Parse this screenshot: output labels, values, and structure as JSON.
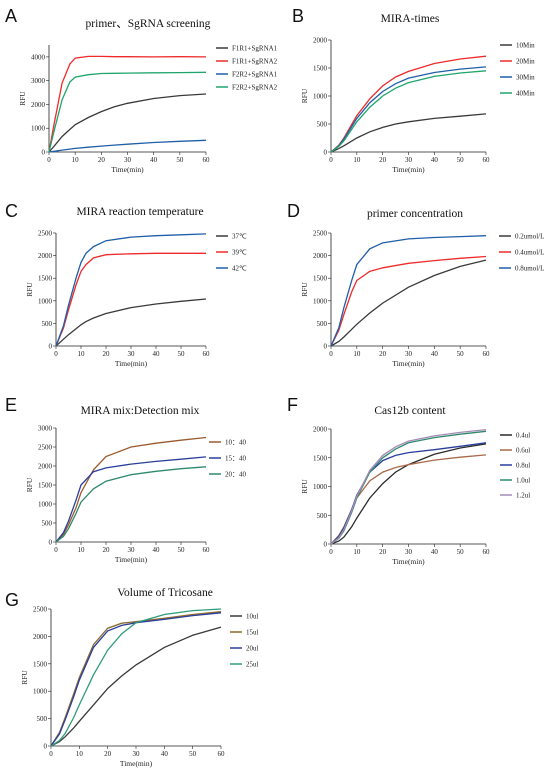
{
  "chart_data": [
    {
      "panel": "A",
      "type": "line",
      "title": "primer、SgRNA screening",
      "xlabel": "Time(min)",
      "ylabel": "RFU",
      "xlim": [
        0,
        60
      ],
      "ylim": [
        0,
        4500
      ],
      "xticks": [
        "0",
        "10",
        "20",
        "30",
        "40",
        "50",
        "60"
      ],
      "yticks": [
        "0",
        "1000",
        "2000",
        "3000",
        "4000"
      ],
      "ytick_values": [
        0,
        1000,
        2000,
        3000,
        4000
      ],
      "legend_position": "right",
      "x": [
        0,
        2,
        5,
        8,
        10,
        15,
        20,
        25,
        30,
        40,
        50,
        60
      ],
      "series": [
        {
          "name": "F1R1+SgRNA1",
          "color": "#3a3a3a",
          "values": [
            0,
            250,
            650,
            950,
            1150,
            1450,
            1700,
            1900,
            2050,
            2250,
            2370,
            2440
          ]
        },
        {
          "name": "F1R1+SgRNA2",
          "color": "#ee2a2a",
          "values": [
            0,
            1200,
            2900,
            3700,
            3950,
            4020,
            4020,
            4010,
            4010,
            4000,
            4010,
            4000
          ]
        },
        {
          "name": "F2R2+SgRNA1",
          "color": "#1f5fa8",
          "values": [
            0,
            30,
            80,
            120,
            150,
            200,
            250,
            290,
            330,
            400,
            450,
            490
          ]
        },
        {
          "name": "F2R2+SgRNA2",
          "color": "#1fa56c",
          "values": [
            0,
            900,
            2200,
            2950,
            3150,
            3250,
            3300,
            3310,
            3320,
            3330,
            3340,
            3350
          ]
        }
      ]
    },
    {
      "panel": "B",
      "type": "line",
      "title": "MIRA-times",
      "xlabel": "Time(min)",
      "ylabel": "RFU",
      "xlim": [
        0,
        60
      ],
      "ylim": [
        0,
        2000
      ],
      "xticks": [
        "0",
        "10",
        "20",
        "30",
        "40",
        "50",
        "60"
      ],
      "yticks": [
        "0",
        "500",
        "1000",
        "1500",
        "2000"
      ],
      "ytick_values": [
        0,
        500,
        1000,
        1500,
        2000
      ],
      "legend_position": "right",
      "x": [
        0,
        3,
        5,
        10,
        15,
        20,
        25,
        30,
        40,
        50,
        60
      ],
      "series": [
        {
          "name": "10Min",
          "color": "#3a3a3a",
          "values": [
            0,
            60,
            110,
            250,
            360,
            440,
            500,
            540,
            600,
            640,
            680
          ]
        },
        {
          "name": "20Min",
          "color": "#ee2a2a",
          "values": [
            0,
            120,
            250,
            650,
            950,
            1180,
            1340,
            1440,
            1580,
            1660,
            1710
          ]
        },
        {
          "name": "30Min",
          "color": "#1f5fa8",
          "values": [
            0,
            110,
            230,
            600,
            880,
            1080,
            1220,
            1320,
            1420,
            1480,
            1520
          ]
        },
        {
          "name": "40Min",
          "color": "#1fa56c",
          "values": [
            0,
            100,
            200,
            540,
            800,
            1000,
            1140,
            1240,
            1350,
            1410,
            1450
          ]
        }
      ]
    },
    {
      "panel": "C",
      "type": "line",
      "title": "MIRA reaction temperature",
      "xlabel": "Time(min)",
      "ylabel": "RFU",
      "xlim": [
        0,
        60
      ],
      "ylim": [
        0,
        2500
      ],
      "xticks": [
        "0",
        "10",
        "20",
        "30",
        "40",
        "50",
        "60"
      ],
      "yticks": [
        "0",
        "500",
        "1000",
        "1500",
        "2000",
        "2500"
      ],
      "ytick_values": [
        0,
        500,
        1000,
        1500,
        2000,
        2500
      ],
      "legend_position": "right",
      "x": [
        0,
        3,
        5,
        8,
        10,
        12,
        15,
        20,
        30,
        40,
        50,
        60
      ],
      "series": [
        {
          "name": "37℃",
          "color": "#3a3a3a",
          "values": [
            0,
            150,
            250,
            380,
            470,
            540,
            620,
            720,
            850,
            930,
            990,
            1040
          ]
        },
        {
          "name": "39℃",
          "color": "#ee2a2a",
          "values": [
            0,
            400,
            800,
            1350,
            1650,
            1800,
            1950,
            2020,
            2040,
            2050,
            2050,
            2050
          ]
        },
        {
          "name": "42℃",
          "color": "#1f5fa8",
          "values": [
            0,
            450,
            900,
            1500,
            1850,
            2050,
            2200,
            2330,
            2410,
            2440,
            2460,
            2480
          ]
        }
      ]
    },
    {
      "panel": "D",
      "type": "line",
      "title": "primer concentration",
      "xlabel": "Time(min)",
      "ylabel": "RFU",
      "xlim": [
        0,
        60
      ],
      "ylim": [
        0,
        2500
      ],
      "xticks": [
        "0",
        "10",
        "20",
        "30",
        "40",
        "50",
        "60"
      ],
      "yticks": [
        "0",
        "500",
        "1000",
        "1500",
        "2000",
        "2500"
      ],
      "ytick_values": [
        0,
        500,
        1000,
        1500,
        2000,
        2500
      ],
      "legend_position": "right",
      "x": [
        0,
        3,
        5,
        8,
        10,
        15,
        20,
        30,
        40,
        50,
        60
      ],
      "series": [
        {
          "name": "0.2umol/L",
          "color": "#3a3a3a",
          "values": [
            0,
            100,
            200,
            370,
            480,
            730,
            950,
            1300,
            1560,
            1760,
            1900
          ]
        },
        {
          "name": "0.4umol/L",
          "color": "#ee2a2a",
          "values": [
            0,
            350,
            700,
            1200,
            1450,
            1650,
            1730,
            1830,
            1890,
            1940,
            1980
          ]
        },
        {
          "name": "0.8umol/L",
          "color": "#1f5fa8",
          "values": [
            0,
            400,
            850,
            1450,
            1800,
            2150,
            2280,
            2370,
            2400,
            2420,
            2440
          ]
        }
      ]
    },
    {
      "panel": "E",
      "type": "line",
      "title": "MIRA mix:Detection mix",
      "xlabel": "Time(min)",
      "ylabel": "RFU",
      "xlim": [
        0,
        60
      ],
      "ylim": [
        0,
        3000
      ],
      "xticks": [
        "0",
        "10",
        "20",
        "30",
        "40",
        "50",
        "60"
      ],
      "yticks": [
        "0",
        "500",
        "1000",
        "1500",
        "2000",
        "2500",
        "3000"
      ],
      "ytick_values": [
        0,
        500,
        1000,
        1500,
        2000,
        2500,
        3000
      ],
      "legend_position": "right",
      "x": [
        0,
        3,
        5,
        8,
        10,
        15,
        20,
        30,
        40,
        50,
        60
      ],
      "series": [
        {
          "name": "10：40",
          "color": "#9c5a2e",
          "values": [
            0,
            200,
            450,
            900,
            1300,
            1900,
            2250,
            2500,
            2600,
            2680,
            2750
          ]
        },
        {
          "name": "15：40",
          "color": "#2a3e9c",
          "values": [
            0,
            250,
            550,
            1100,
            1500,
            1850,
            1950,
            2050,
            2120,
            2180,
            2240
          ]
        },
        {
          "name": "20：40",
          "color": "#2e8a6a",
          "values": [
            0,
            150,
            350,
            750,
            1050,
            1400,
            1600,
            1770,
            1860,
            1930,
            1980
          ]
        }
      ]
    },
    {
      "panel": "F",
      "type": "line",
      "title": "Cas12b content",
      "xlabel": "Time(min)",
      "ylabel": "RFU",
      "xlim": [
        0,
        60
      ],
      "ylim": [
        0,
        2000
      ],
      "xticks": [
        "0",
        "10",
        "20",
        "30",
        "40",
        "50",
        "60"
      ],
      "yticks": [
        "0",
        "500",
        "1000",
        "1500",
        "2000"
      ],
      "ytick_values": [
        0,
        500,
        1000,
        1500,
        2000
      ],
      "legend_position": "right",
      "x": [
        0,
        3,
        5,
        8,
        10,
        15,
        20,
        25,
        30,
        40,
        50,
        60
      ],
      "series": [
        {
          "name": "0.4ul",
          "color": "#2b2b2b",
          "values": [
            0,
            50,
            120,
            300,
            450,
            800,
            1050,
            1250,
            1380,
            1560,
            1670,
            1740
          ]
        },
        {
          "name": "0.6ul",
          "color": "#a86a4a",
          "values": [
            0,
            150,
            300,
            600,
            800,
            1100,
            1250,
            1330,
            1380,
            1460,
            1510,
            1550
          ]
        },
        {
          "name": "0.8ul",
          "color": "#2a3e9c",
          "values": [
            0,
            130,
            280,
            600,
            850,
            1250,
            1450,
            1540,
            1590,
            1640,
            1700,
            1760
          ]
        },
        {
          "name": "1.0ul",
          "color": "#2e8a6a",
          "values": [
            0,
            100,
            230,
            550,
            800,
            1250,
            1500,
            1650,
            1760,
            1850,
            1910,
            1960
          ]
        },
        {
          "name": "1.2ul",
          "color": "#a58ab8",
          "values": [
            0,
            110,
            250,
            580,
            830,
            1280,
            1540,
            1690,
            1790,
            1880,
            1940,
            1990
          ]
        }
      ]
    },
    {
      "panel": "G",
      "type": "line",
      "title": "Volume of Tricosane",
      "xlabel": "Time(min)",
      "ylabel": "RFU",
      "xlim": [
        0,
        60
      ],
      "ylim": [
        0,
        2500
      ],
      "xticks": [
        "0",
        "10",
        "20",
        "30",
        "40",
        "50",
        "60"
      ],
      "yticks": [
        "0",
        "500",
        "1000",
        "1500",
        "2000",
        "2500"
      ],
      "ytick_values": [
        0,
        500,
        1000,
        1500,
        2000,
        2500
      ],
      "legend_position": "right",
      "x": [
        0,
        3,
        5,
        8,
        10,
        15,
        20,
        25,
        30,
        40,
        50,
        60
      ],
      "series": [
        {
          "name": "10ul",
          "color": "#3a3a3a",
          "values": [
            0,
            80,
            170,
            330,
            450,
            750,
            1050,
            1280,
            1480,
            1800,
            2020,
            2170
          ]
        },
        {
          "name": "15ul",
          "color": "#8a6a2e",
          "values": [
            0,
            250,
            520,
            950,
            1250,
            1850,
            2150,
            2240,
            2270,
            2330,
            2400,
            2450
          ]
        },
        {
          "name": "20ul",
          "color": "#2a3e9c",
          "values": [
            0,
            220,
            480,
            900,
            1200,
            1800,
            2100,
            2200,
            2250,
            2310,
            2380,
            2430
          ]
        },
        {
          "name": "25ul",
          "color": "#2e9c7a",
          "values": [
            0,
            100,
            230,
            520,
            750,
            1300,
            1750,
            2050,
            2250,
            2400,
            2470,
            2500
          ]
        }
      ]
    }
  ]
}
